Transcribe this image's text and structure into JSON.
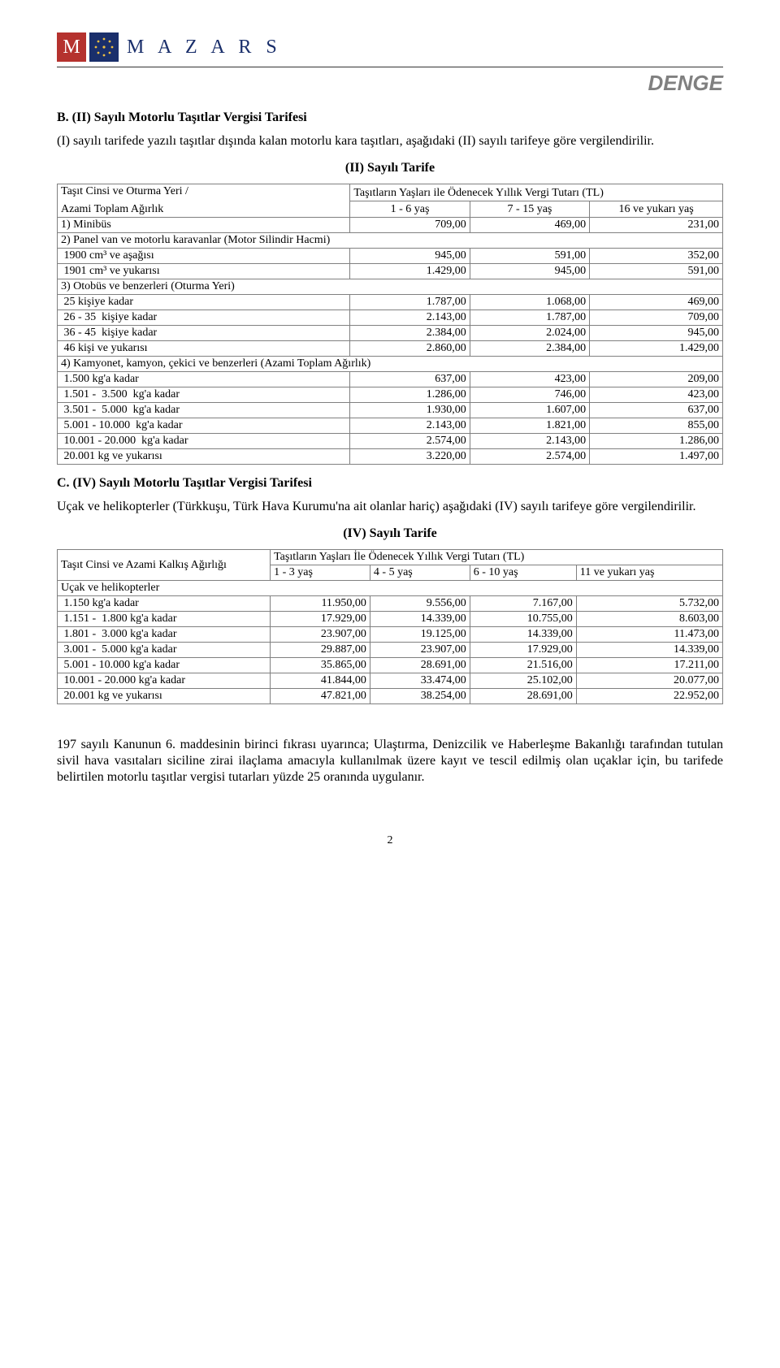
{
  "header": {
    "logo_letter": "M",
    "brand": "M A Z A R S",
    "sub_brand": "DENGE"
  },
  "sectionB": {
    "title": "B. (II) Sayılı Motorlu Taşıtlar Vergisi Tarifesi",
    "intro": "(I) sayılı tarifede yazılı taşıtlar dışında kalan motorlu kara taşıtları, aşağıdaki (II) sayılı tarifeye göre vergilendirilir.",
    "table_title": "(II) Sayılı Tarife",
    "table": {
      "head_left_1": "Taşıt Cinsi ve Oturma Yeri /",
      "head_left_2": "Azami Toplam Ağırlık",
      "head_right": "Taşıtların Yaşları ile Ödenecek Yıllık Vergi Tutarı (TL)",
      "col1": "1 - 6 yaş",
      "col2": "7 - 15 yaş",
      "col3": "16 ve yukarı yaş",
      "rows": [
        {
          "label": "1) Minibüs",
          "v1": "709,00",
          "v2": "469,00",
          "v3": "231,00"
        },
        {
          "label": "2) Panel van ve motorlu karavanlar (Motor Silindir Hacmi)",
          "type": "group"
        },
        {
          "label": " 1900 cm³ ve aşağısı",
          "v1": "945,00",
          "v2": "591,00",
          "v3": "352,00"
        },
        {
          "label": " 1901 cm³ ve yukarısı",
          "v1": "1.429,00",
          "v2": "945,00",
          "v3": "591,00"
        },
        {
          "label": "3) Otobüs ve benzerleri (Oturma Yeri)",
          "type": "group"
        },
        {
          "label": " 25 kişiye kadar",
          "v1": "1.787,00",
          "v2": "1.068,00",
          "v3": "469,00"
        },
        {
          "label": " 26 - 35  kişiye kadar",
          "v1": "2.143,00",
          "v2": "1.787,00",
          "v3": "709,00"
        },
        {
          "label": " 36 - 45  kişiye kadar",
          "v1": "2.384,00",
          "v2": "2.024,00",
          "v3": "945,00"
        },
        {
          "label": " 46 kişi ve yukarısı",
          "v1": "2.860,00",
          "v2": "2.384,00",
          "v3": "1.429,00"
        },
        {
          "label": "4) Kamyonet, kamyon, çekici ve benzerleri (Azami Toplam Ağırlık)",
          "type": "group"
        },
        {
          "label": " 1.500 kg'a kadar",
          "v1": "637,00",
          "v2": "423,00",
          "v3": "209,00"
        },
        {
          "label": " 1.501 -  3.500  kg'a kadar",
          "v1": "1.286,00",
          "v2": "746,00",
          "v3": "423,00"
        },
        {
          "label": " 3.501 -  5.000  kg'a kadar",
          "v1": "1.930,00",
          "v2": "1.607,00",
          "v3": "637,00"
        },
        {
          "label": " 5.001 - 10.000  kg'a kadar",
          "v1": "2.143,00",
          "v2": "1.821,00",
          "v3": "855,00"
        },
        {
          "label": " 10.001 - 20.000  kg'a kadar",
          "v1": "2.574,00",
          "v2": "2.143,00",
          "v3": "1.286,00"
        },
        {
          "label": " 20.001 kg ve yukarısı",
          "v1": "3.220,00",
          "v2": "2.574,00",
          "v3": "1.497,00"
        }
      ]
    }
  },
  "sectionC": {
    "title": "C. (IV) Sayılı Motorlu Taşıtlar Vergisi Tarifesi",
    "intro": "Uçak ve helikopterler (Türkkuşu, Türk Hava Kurumu'na ait olanlar hariç) aşağıdaki (IV) sayılı tarifeye göre vergilendirilir.",
    "table_title": "(IV) Sayılı Tarife",
    "table": {
      "head_left": "Taşıt Cinsi ve Azami Kalkış Ağırlığı",
      "head_right": "Taşıtların Yaşları İle Ödenecek Yıllık Vergi Tutarı (TL)",
      "col1": "1 - 3 yaş",
      "col2": "4 - 5 yaş",
      "col3": "6 - 10 yaş",
      "col4": "11 ve yukarı yaş",
      "group": "Uçak ve helikopterler",
      "rows": [
        {
          "label": " 1.150 kg'a kadar",
          "v1": "11.950,00",
          "v2": "9.556,00",
          "v3": "7.167,00",
          "v4": "5.732,00"
        },
        {
          "label": " 1.151 -  1.800 kg'a kadar",
          "v1": "17.929,00",
          "v2": "14.339,00",
          "v3": "10.755,00",
          "v4": "8.603,00"
        },
        {
          "label": " 1.801 -  3.000 kg'a kadar",
          "v1": "23.907,00",
          "v2": "19.125,00",
          "v3": "14.339,00",
          "v4": "11.473,00"
        },
        {
          "label": " 3.001 -  5.000 kg'a kadar",
          "v1": "29.887,00",
          "v2": "23.907,00",
          "v3": "17.929,00",
          "v4": "14.339,00"
        },
        {
          "label": " 5.001 - 10.000 kg'a kadar",
          "v1": "35.865,00",
          "v2": "28.691,00",
          "v3": "21.516,00",
          "v4": "17.211,00"
        },
        {
          "label": " 10.001 - 20.000 kg'a kadar",
          "v1": "41.844,00",
          "v2": "33.474,00",
          "v3": "25.102,00",
          "v4": "20.077,00"
        },
        {
          "label": " 20.001 kg ve yukarısı",
          "v1": "47.821,00",
          "v2": "38.254,00",
          "v3": "28.691,00",
          "v4": "22.952,00"
        }
      ]
    }
  },
  "footer_para": "197 sayılı Kanunun 6. maddesinin birinci fıkrası uyarınca; Ulaştırma, Denizcilik ve Haberleşme Bakanlığı tarafından tutulan sivil hava vasıtaları siciline zirai ilaçlama amacıyla kullanılmak üzere kayıt ve tescil edilmiş olan uçaklar için, bu tarifede belirtilen motorlu taşıtlar vergisi tutarları yüzde 25 oranında uygulanır.",
  "page_number": "2"
}
